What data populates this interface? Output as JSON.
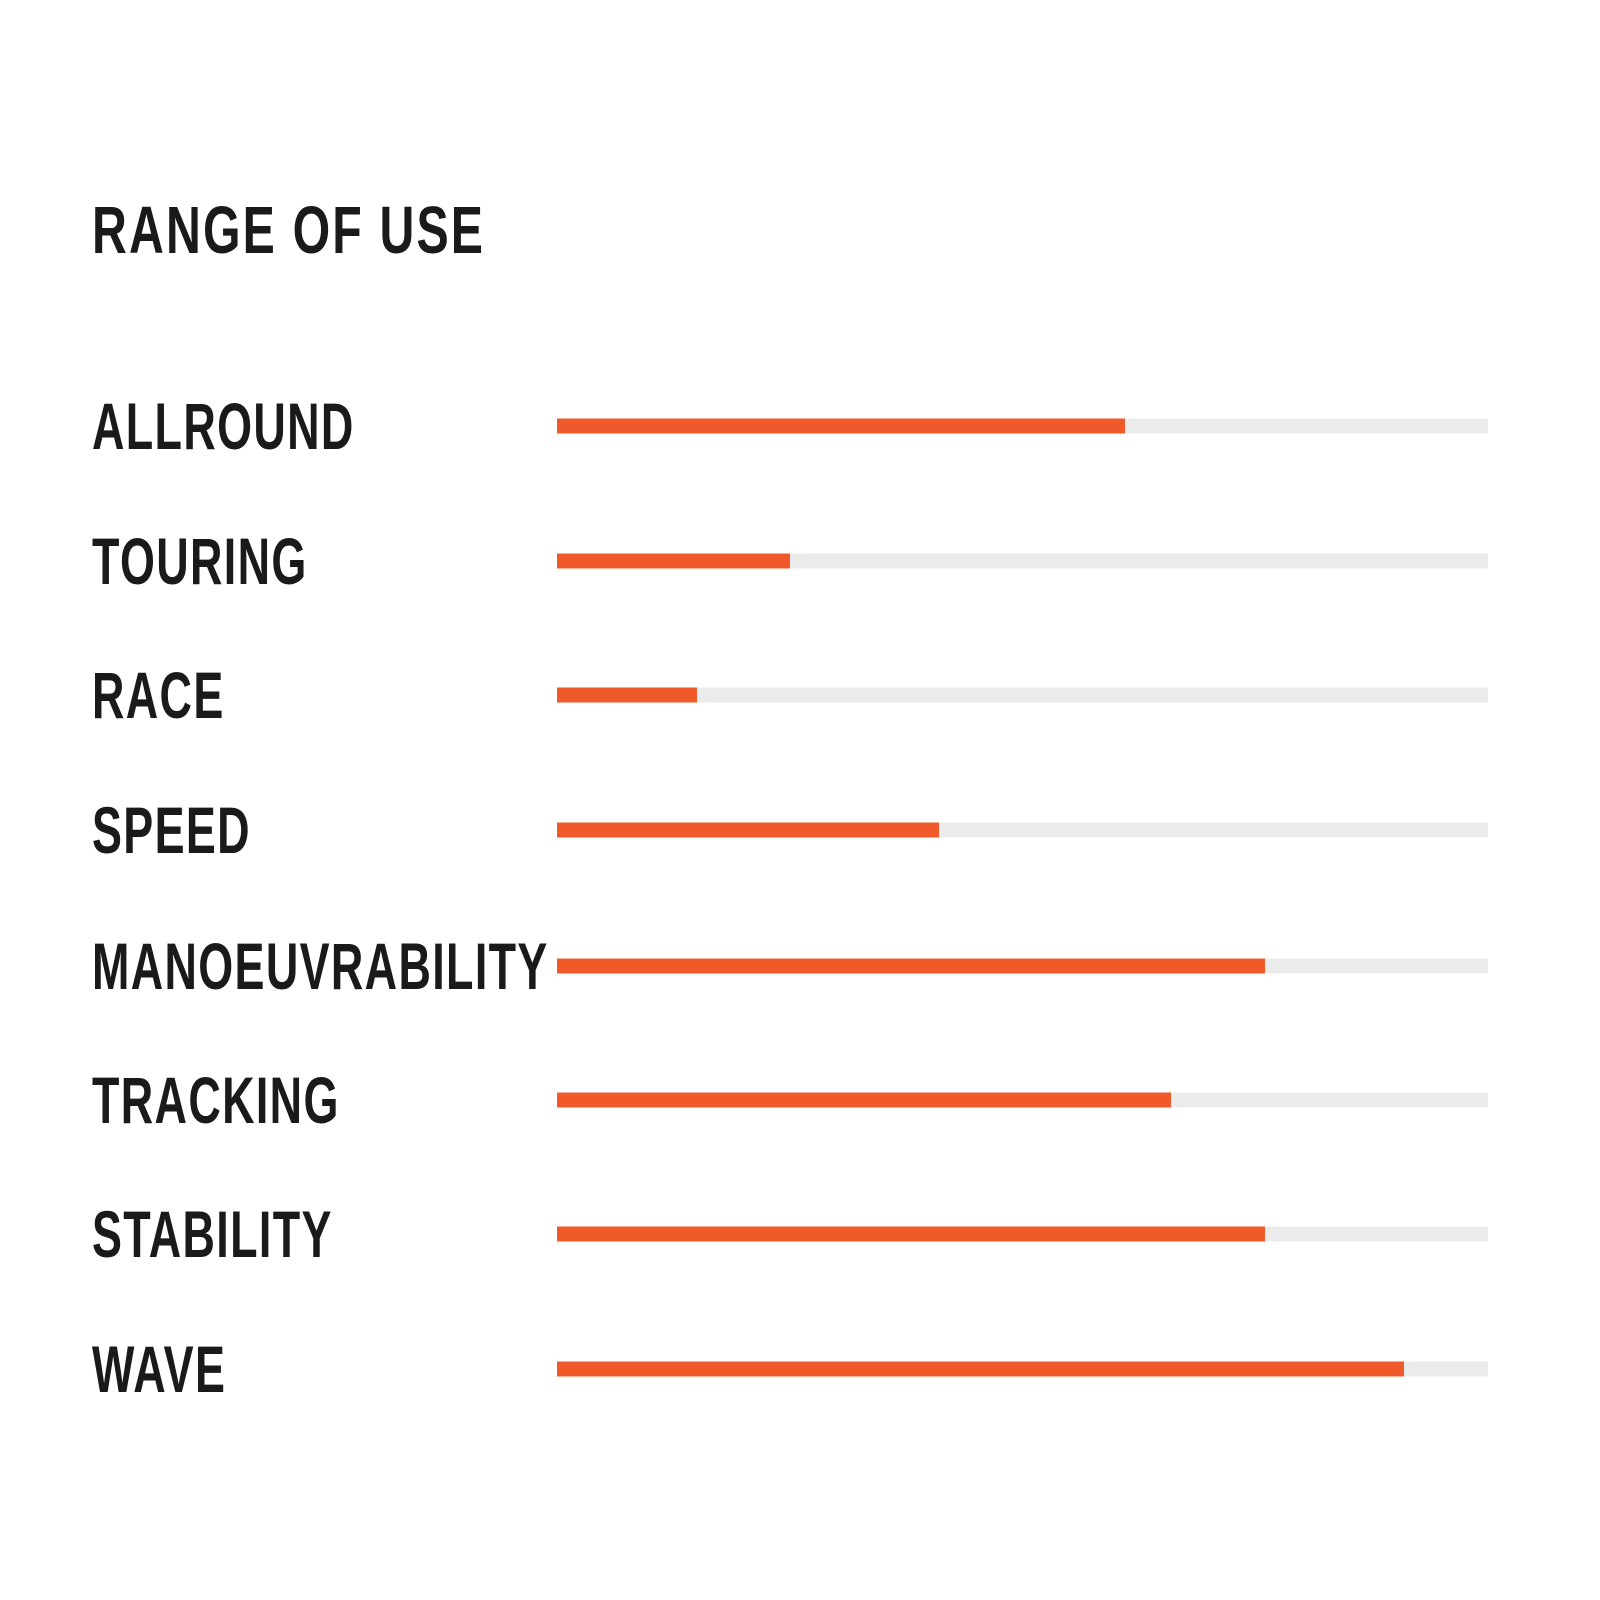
{
  "title": "RANGE OF USE",
  "chart_data": {
    "type": "bar",
    "orientation": "horizontal",
    "title": "RANGE OF USE",
    "categories": [
      "ALLROUND",
      "TOURING",
      "RACE",
      "SPEED",
      "MANOEUVRABILITY",
      "TRACKING",
      "STABILITY",
      "WAVE"
    ],
    "values": [
      61,
      25,
      15,
      41,
      76,
      66,
      76,
      91
    ],
    "value_max": 100,
    "bar_color": "#F0592A",
    "track_color": "#EBEBEB",
    "text_color": "#1A1A1A",
    "background_color": "#FFFFFF",
    "grid": false,
    "legend": false
  }
}
